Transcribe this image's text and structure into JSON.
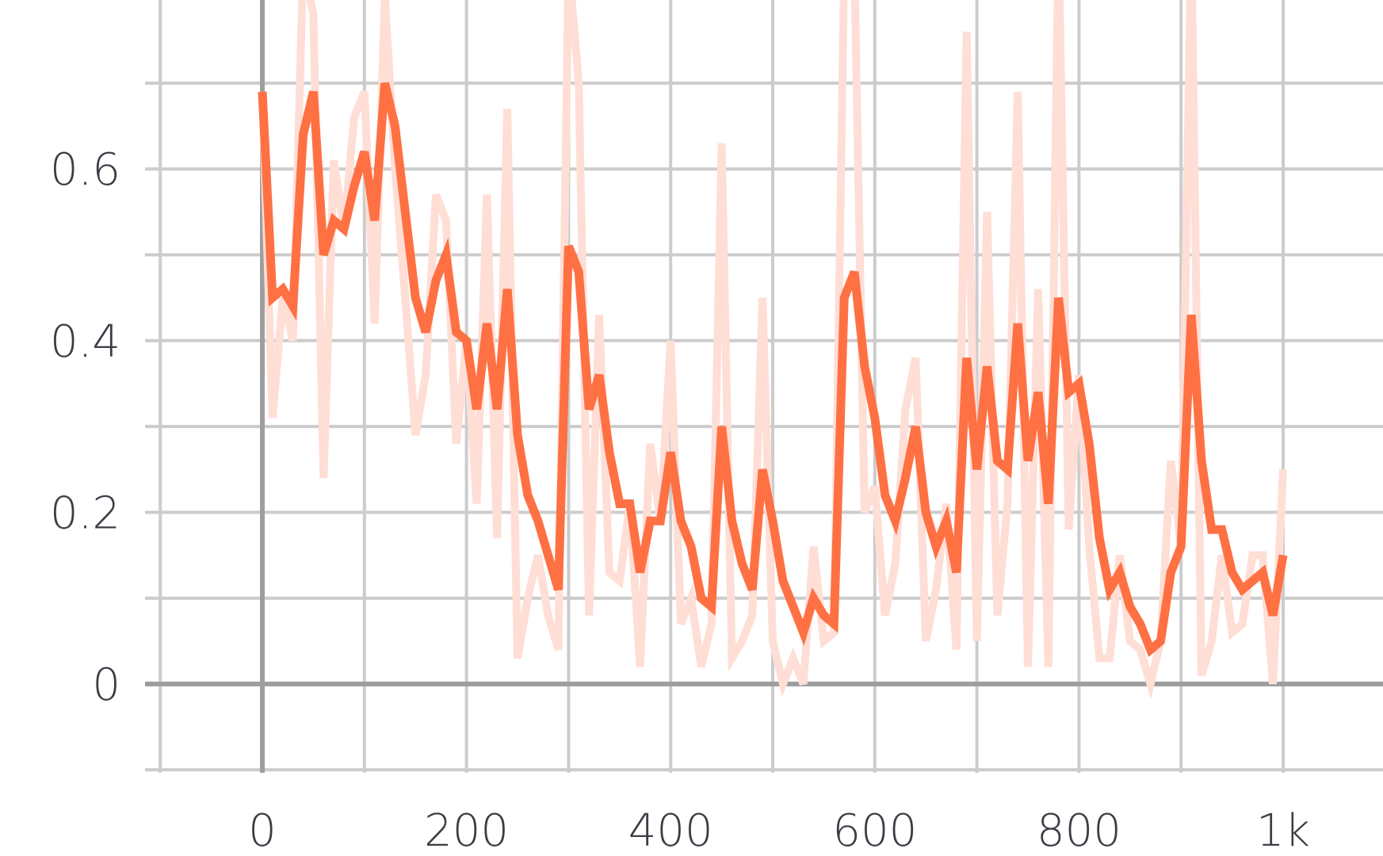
{
  "chart_data": {
    "type": "line",
    "title": "",
    "xlabel": "",
    "ylabel": "",
    "xlim": [
      -100,
      1100
    ],
    "ylim": [
      -0.1,
      0.8
    ],
    "x_ticks": [
      0,
      200,
      400,
      600,
      800,
      1000
    ],
    "x_tick_labels": [
      "0",
      "200",
      "400",
      "600",
      "800",
      "1k"
    ],
    "y_ticks": [
      0,
      0.2,
      0.4,
      0.6
    ],
    "y_tick_labels": [
      "0",
      "0.2",
      "0.4",
      "0.6"
    ],
    "grid": true,
    "legend": "none",
    "series": [
      {
        "role": "raw",
        "color": "#ffded6",
        "x": [
          0,
          10,
          20,
          30,
          40,
          50,
          60,
          70,
          80,
          90,
          100,
          110,
          120,
          130,
          140,
          150,
          160,
          170,
          180,
          190,
          200,
          210,
          220,
          230,
          240,
          250,
          260,
          270,
          280,
          290,
          300,
          310,
          320,
          330,
          340,
          350,
          360,
          370,
          380,
          390,
          400,
          410,
          420,
          430,
          440,
          450,
          460,
          470,
          480,
          490,
          500,
          510,
          520,
          530,
          540,
          550,
          560,
          570,
          580,
          590,
          600,
          610,
          620,
          630,
          640,
          650,
          660,
          670,
          680,
          690,
          700,
          710,
          720,
          730,
          740,
          750,
          760,
          770,
          780,
          790,
          800,
          810,
          820,
          830,
          840,
          850,
          860,
          870,
          880,
          890,
          900,
          910,
          920,
          930,
          940,
          950,
          960,
          970,
          980,
          990,
          1000
        ],
        "y": [
          0.69,
          0.31,
          0.45,
          0.4,
          0.84,
          0.78,
          0.24,
          0.61,
          0.53,
          0.66,
          0.69,
          0.42,
          0.8,
          0.6,
          0.45,
          0.29,
          0.36,
          0.57,
          0.54,
          0.28,
          0.4,
          0.21,
          0.57,
          0.17,
          0.67,
          0.03,
          0.1,
          0.15,
          0.08,
          0.04,
          0.84,
          0.7,
          0.08,
          0.43,
          0.13,
          0.12,
          0.21,
          0.02,
          0.28,
          0.19,
          0.4,
          0.07,
          0.1,
          0.02,
          0.07,
          0.63,
          0.03,
          0.05,
          0.08,
          0.45,
          0.05,
          0.0,
          0.03,
          0.0,
          0.16,
          0.05,
          0.06,
          0.84,
          0.84,
          0.2,
          0.23,
          0.08,
          0.14,
          0.32,
          0.38,
          0.05,
          0.11,
          0.21,
          0.04,
          0.76,
          0.05,
          0.55,
          0.08,
          0.21,
          0.69,
          0.02,
          0.46,
          0.02,
          0.87,
          0.18,
          0.36,
          0.16,
          0.03,
          0.03,
          0.15,
          0.05,
          0.04,
          0.0,
          0.05,
          0.26,
          0.16,
          0.87,
          0.01,
          0.05,
          0.15,
          0.06,
          0.07,
          0.15,
          0.15,
          0.0,
          0.25
        ]
      },
      {
        "role": "smoothed",
        "color": "#ff7043",
        "x": [
          0,
          10,
          20,
          30,
          40,
          50,
          60,
          70,
          80,
          90,
          100,
          110,
          120,
          130,
          140,
          150,
          160,
          170,
          180,
          190,
          200,
          210,
          220,
          230,
          240,
          250,
          260,
          270,
          280,
          290,
          300,
          310,
          320,
          330,
          340,
          350,
          360,
          370,
          380,
          390,
          400,
          410,
          420,
          430,
          440,
          450,
          460,
          470,
          480,
          490,
          500,
          510,
          520,
          530,
          540,
          550,
          560,
          570,
          580,
          590,
          600,
          610,
          620,
          630,
          640,
          650,
          660,
          670,
          680,
          690,
          700,
          710,
          720,
          730,
          740,
          750,
          760,
          770,
          780,
          790,
          800,
          810,
          820,
          830,
          840,
          850,
          860,
          870,
          880,
          890,
          900,
          910,
          920,
          930,
          940,
          950,
          960,
          970,
          980,
          990,
          1000
        ],
        "y": [
          0.69,
          0.45,
          0.46,
          0.44,
          0.64,
          0.69,
          0.5,
          0.54,
          0.53,
          0.58,
          0.62,
          0.54,
          0.7,
          0.65,
          0.55,
          0.45,
          0.41,
          0.47,
          0.5,
          0.41,
          0.4,
          0.32,
          0.42,
          0.32,
          0.46,
          0.29,
          0.22,
          0.19,
          0.15,
          0.11,
          0.51,
          0.48,
          0.32,
          0.36,
          0.27,
          0.21,
          0.21,
          0.13,
          0.19,
          0.19,
          0.27,
          0.19,
          0.16,
          0.1,
          0.09,
          0.3,
          0.19,
          0.14,
          0.11,
          0.25,
          0.19,
          0.12,
          0.09,
          0.06,
          0.1,
          0.08,
          0.07,
          0.45,
          0.48,
          0.37,
          0.31,
          0.22,
          0.19,
          0.24,
          0.3,
          0.2,
          0.16,
          0.19,
          0.13,
          0.38,
          0.25,
          0.37,
          0.26,
          0.25,
          0.42,
          0.26,
          0.34,
          0.21,
          0.45,
          0.34,
          0.35,
          0.28,
          0.17,
          0.11,
          0.13,
          0.09,
          0.07,
          0.04,
          0.05,
          0.13,
          0.16,
          0.43,
          0.26,
          0.18,
          0.18,
          0.13,
          0.11,
          0.12,
          0.13,
          0.08,
          0.15
        ]
      }
    ]
  }
}
